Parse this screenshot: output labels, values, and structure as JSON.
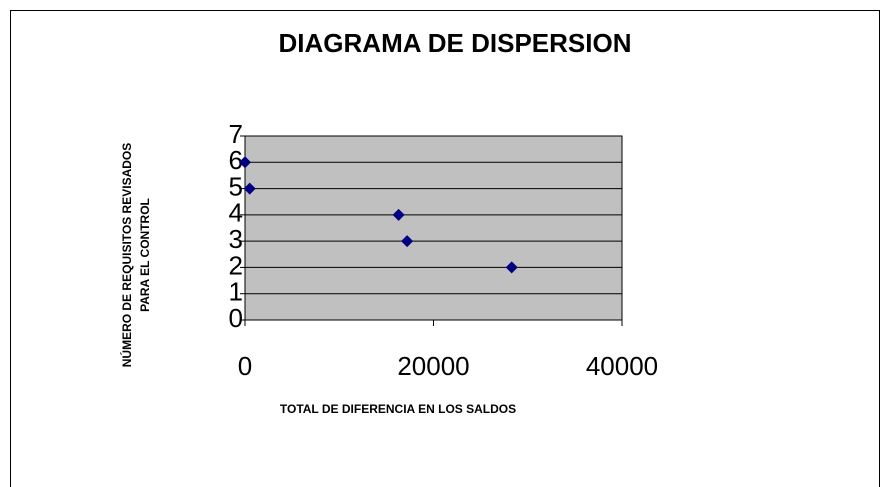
{
  "chart_data": {
    "type": "scatter",
    "title": "DIAGRAMA DE DISPERSION",
    "xlabel": "TOTAL DE DIFERENCIA EN LOS SALDOS",
    "ylabel": [
      "NÚMERO DE REQUISITOS REVISADOS",
      "PARA EL CONTROL"
    ],
    "series": [
      {
        "name": null,
        "color": "#000080",
        "x": [
          0,
          500,
          16300,
          17200,
          28300
        ],
        "values": [
          6,
          5,
          4,
          3,
          2
        ]
      }
    ],
    "xlim": [
      0,
      40000
    ],
    "xticks": [
      0,
      20000,
      40000
    ],
    "ylim": [
      0,
      7
    ],
    "yticks": [
      0,
      1,
      2,
      3,
      4,
      5,
      6,
      7
    ],
    "grid": true,
    "plot_background": "#c0c0c0"
  }
}
